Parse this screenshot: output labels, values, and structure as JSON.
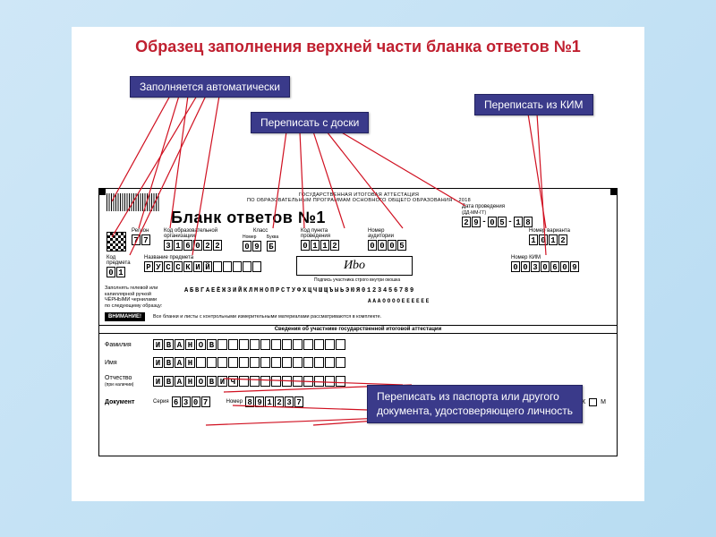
{
  "title": "Образец заполнения верхней части бланка ответов №1",
  "callouts": {
    "auto": "Заполняется автоматически",
    "board": "Переписать с доски",
    "kim": "Переписать из КИМ",
    "passport_l1": "Переписать из паспорта или другого",
    "passport_l2": "документа, удостоверяющего личность"
  },
  "form": {
    "header1": "ГОСУДАРСТВЕННАЯ ИТОГОВАЯ АТТЕСТАЦИЯ",
    "header2": "ПО ОБРАЗОВАТЕЛЬНЫМ ПРОГРАММАМ ОСНОВНОГО ОБЩЕГО ОБРАЗОВАНИЯ – 2018",
    "big_title": "Бланк ответов №1",
    "labels": {
      "date": "Дата проведения",
      "date_fmt": "(ДД-ММ-ГГ)",
      "region": "Регион",
      "org": "Код образовательной организации",
      "klass": "Класс",
      "nomer": "Номер",
      "bukva": "Буква",
      "punkt": "Код пункта проведения",
      "aud": "Номер аудитории",
      "variant": "Номер варианта",
      "subj_code": "Код предмета",
      "subj_name": "Название предмета",
      "kim": "Номер КИМ",
      "sign": "Подпись участника строго внутри окошка",
      "fill_note_l1": "Заполнять гелевой или",
      "fill_note_l2": "капиллярной ручкой",
      "fill_note_l3": "ЧЁРНЫМИ чернилами",
      "fill_note_l4": "по следующему образцу:",
      "attn": "ВНИМАНИЕ!",
      "attn_text": "Все бланки и листы с контрольными измерительными материалами рассматриваются в комплекте.",
      "section": "Сведения об участнике государственной итоговой аттестации",
      "surname": "Фамилия",
      "name": "Имя",
      "patronym": "Отчество",
      "patronym_note": "(при наличии)",
      "doc": "Документ",
      "series": "Серия",
      "number": "Номер",
      "pol": "Пол",
      "pol_zh": "Ж",
      "pol_m": "М"
    },
    "values": {
      "date": [
        "2",
        "9",
        "-",
        "0",
        "5",
        "-",
        "1",
        "8"
      ],
      "region": [
        "7",
        "7"
      ],
      "org": [
        "3",
        "1",
        "6",
        "0",
        "2",
        "2"
      ],
      "klass_n": [
        "0",
        "9"
      ],
      "klass_b": [
        "Б"
      ],
      "punkt": [
        "0",
        "1",
        "1",
        "2"
      ],
      "aud": [
        "0",
        "0",
        "0",
        "5"
      ],
      "variant": [
        "1",
        "0",
        "1",
        "2"
      ],
      "subj_code": [
        "0",
        "1"
      ],
      "subj_name": [
        "Р",
        "У",
        "С",
        "С",
        "К",
        "И",
        "Й",
        "",
        "",
        "",
        "",
        ""
      ],
      "kim": [
        "0",
        "0",
        "3",
        "0",
        "6",
        "0",
        "9"
      ],
      "signature": "Иbo",
      "alpha1": "АБВГАЕЁЖЗИЙКЛМНОПРСТУФХЦЧШЩЪЫЬЭЮЯ0123456789",
      "alpha2": "АААООООЕЕЕЕЕЕ",
      "surname": [
        "И",
        "В",
        "А",
        "Н",
        "О",
        "В",
        "",
        "",
        "",
        "",
        "",
        "",
        "",
        "",
        "",
        "",
        "",
        ""
      ],
      "name": [
        "И",
        "В",
        "А",
        "Н",
        "",
        "",
        "",
        "",
        "",
        "",
        "",
        "",
        "",
        "",
        "",
        "",
        "",
        ""
      ],
      "patronym": [
        "И",
        "В",
        "А",
        "Н",
        "О",
        "В",
        "И",
        "Ч",
        "",
        "",
        "",
        "",
        "",
        "",
        "",
        "",
        "",
        ""
      ],
      "series": [
        "6",
        "3",
        "0",
        "7"
      ],
      "number": [
        "8",
        "9",
        "1",
        "2",
        "3",
        "7"
      ],
      "pol_checked": "Ж"
    }
  },
  "style": {
    "callout_bg": "#3a3a8a",
    "title_color": "#c02030",
    "line_color": "#d01020"
  }
}
